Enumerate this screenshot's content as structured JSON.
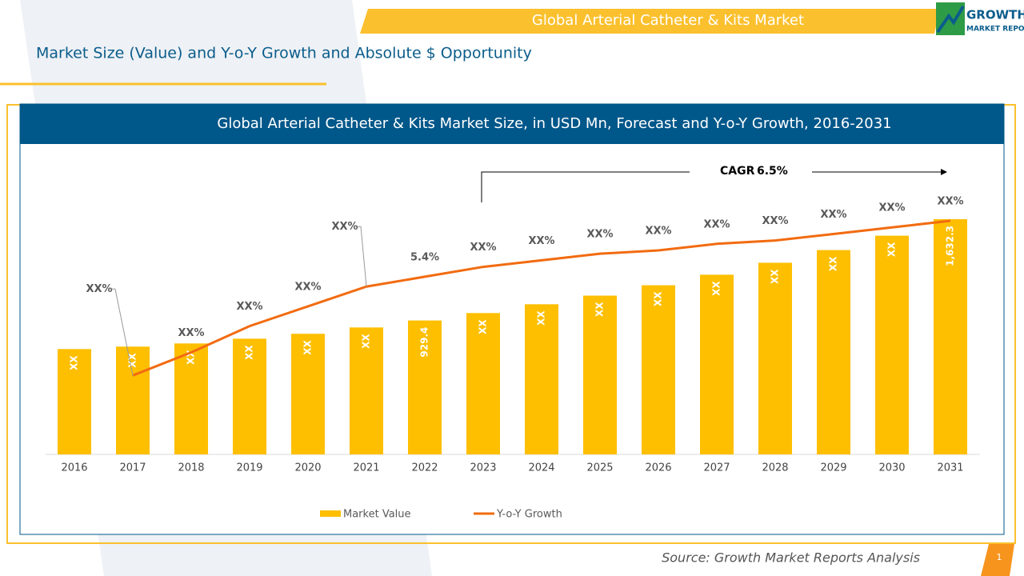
{
  "header": {
    "title": "Global Arterial Catheter & Kits Market",
    "subtitle": "Market Size (Value) and Y-o-Y Growth and Absolute $ Opportunity",
    "logo_top": "GROWTH",
    "logo_bottom": "MARKET REPORTS"
  },
  "chart_data": {
    "type": "bar-line",
    "title": "Global Arterial Catheter & Kits Market Size, in USD Mn, Forecast and Y-o-Y Growth, 2016-2031",
    "categories": [
      "2016",
      "2017",
      "2018",
      "2019",
      "2020",
      "2021",
      "2022",
      "2023",
      "2024",
      "2025",
      "2026",
      "2027",
      "2028",
      "2029",
      "2030",
      "2031"
    ],
    "series": [
      {
        "name": "Market Value",
        "color": "#fdbf00",
        "type": "bar",
        "values": [
          731,
          748,
          770,
          803,
          837,
          881,
          929.4,
          981,
          1042,
          1102,
          1174,
          1247,
          1330,
          1418,
          1518,
          1632.3
        ],
        "value_labels": [
          "XX",
          "XX",
          "XX",
          "XX",
          "XX",
          "XX",
          "929.4",
          "XX",
          "XX",
          "XX",
          "XX",
          "XX",
          "XX",
          "XX",
          "XX",
          "1,632.3"
        ]
      },
      {
        "name": "Y-o-Y Growth",
        "color": "#f26b10",
        "type": "line",
        "axis": "y2",
        "values": [
          null,
          2.4,
          3.1,
          3.9,
          4.5,
          5.1,
          5.4,
          5.7,
          5.9,
          6.1,
          6.2,
          6.4,
          6.5,
          6.7,
          6.9,
          7.1
        ],
        "value_labels": [
          null,
          "XX%",
          "XX%",
          "XX%",
          "XX%",
          "XX%",
          "5.4%",
          "XX%",
          "XX%",
          "XX%",
          "XX%",
          "XX%",
          "XX%",
          "XX%",
          "XX%",
          "XX%"
        ]
      }
    ],
    "annotations": {
      "cagr_label": "CAGR",
      "cagr_value": "6.5%"
    }
  },
  "footer": {
    "source": "Source: Growth Market Reports Analysis",
    "page": "1"
  }
}
